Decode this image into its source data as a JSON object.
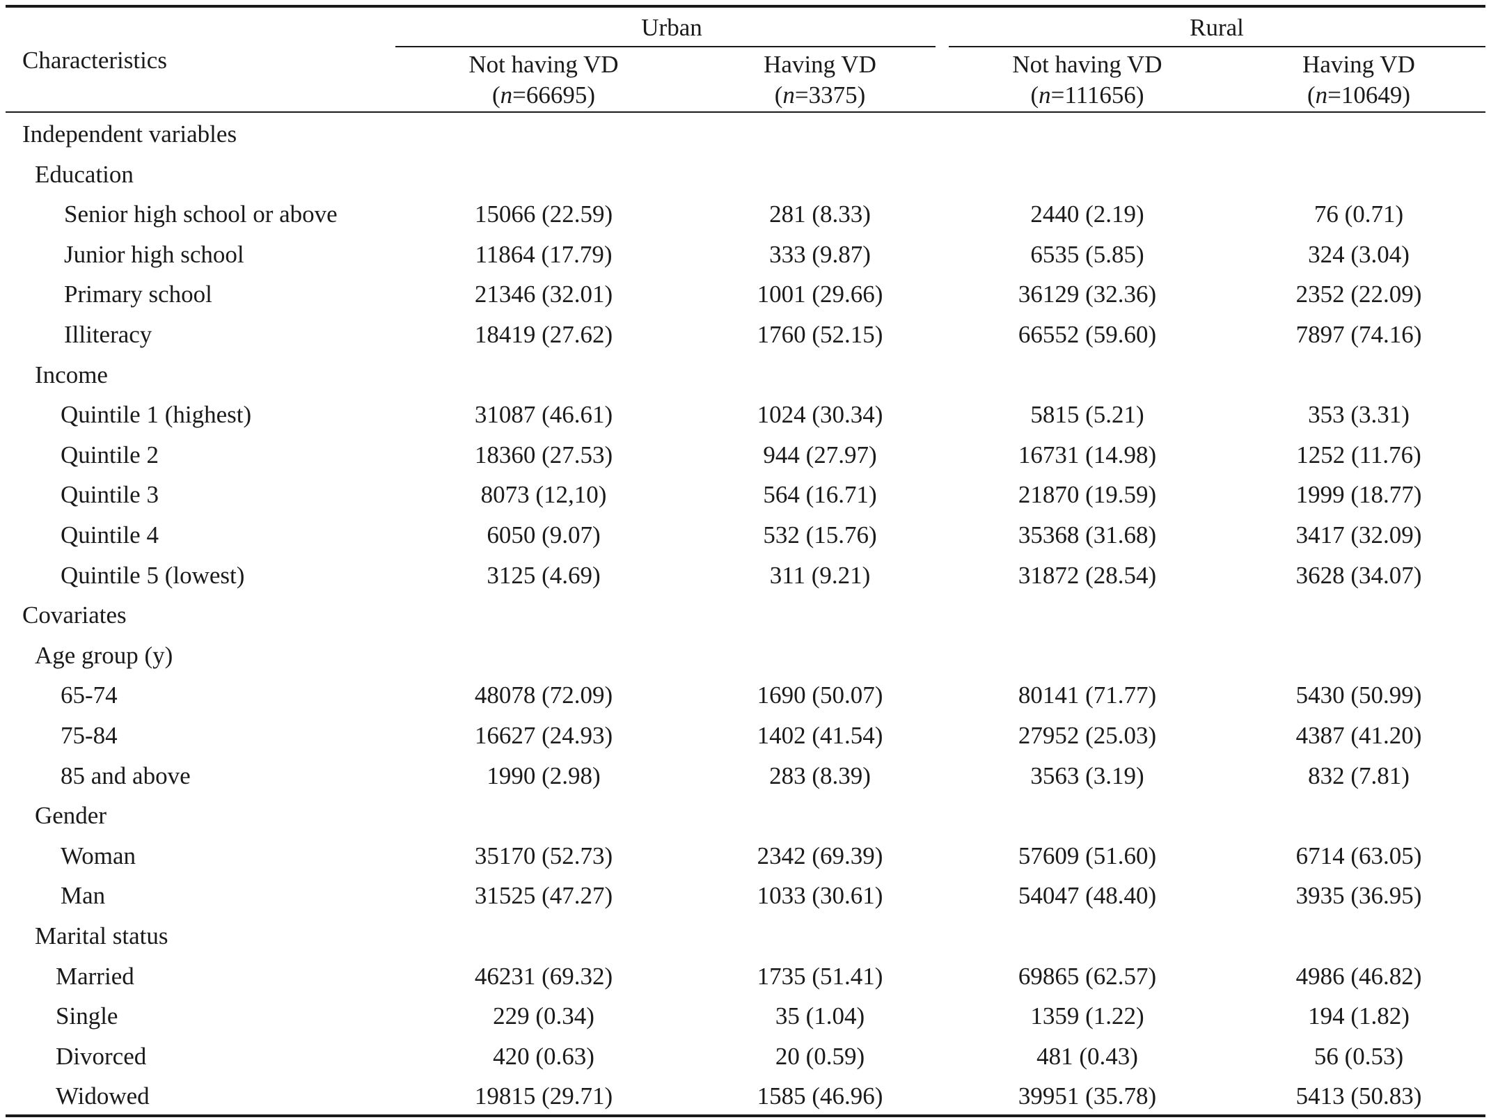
{
  "table": {
    "stub_header": "Characteristics",
    "groups": [
      "Urban",
      "Rural"
    ],
    "columns": [
      {
        "label": "Not having VD",
        "n_prefix": "(",
        "n_symbol": "n",
        "n_value": "=66695)"
      },
      {
        "label": "Having VD",
        "n_prefix": "(",
        "n_symbol": "n",
        "n_value": "=3375)"
      },
      {
        "label": "Not having VD",
        "n_prefix": "(",
        "n_symbol": "n",
        "n_value": "=111656)"
      },
      {
        "label": "Having VD",
        "n_prefix": "(",
        "n_symbol": "n",
        "n_value": "=10649)"
      }
    ],
    "rows": [
      {
        "label": "Independent variables",
        "level": 0,
        "values": []
      },
      {
        "label": "Education",
        "level": 1,
        "values": []
      },
      {
        "label": "Senior high school or above",
        "level": 2,
        "values": [
          "15066 (22.59)",
          "281 (8.33)",
          "2440 (2.19)",
          "76 (0.71)"
        ]
      },
      {
        "label": "Junior high school",
        "level": 2,
        "values": [
          "11864 (17.79)",
          "333 (9.87)",
          "6535 (5.85)",
          "324 (3.04)"
        ]
      },
      {
        "label": "Primary school",
        "level": 2,
        "values": [
          "21346 (32.01)",
          "1001 (29.66)",
          "36129 (32.36)",
          "2352 (22.09)"
        ]
      },
      {
        "label": "Illiteracy",
        "level": 2,
        "values": [
          "18419 (27.62)",
          "1760 (52.15)",
          "66552 (59.60)",
          "7897 (74.16)"
        ]
      },
      {
        "label": "Income",
        "level": 1,
        "values": []
      },
      {
        "label": "Quintile 1 (highest)",
        "level": 3,
        "values": [
          "31087 (46.61)",
          "1024 (30.34)",
          "5815 (5.21)",
          "353 (3.31)"
        ]
      },
      {
        "label": "Quintile 2",
        "level": 3,
        "values": [
          "18360 (27.53)",
          "944 (27.97)",
          "16731 (14.98)",
          "1252 (11.76)"
        ]
      },
      {
        "label": "Quintile 3",
        "level": 3,
        "values": [
          "8073 (12,10)",
          "564 (16.71)",
          "21870 (19.59)",
          "1999 (18.77)"
        ]
      },
      {
        "label": "Quintile 4",
        "level": 3,
        "values": [
          "6050 (9.07)",
          "532 (15.76)",
          "35368 (31.68)",
          "3417 (32.09)"
        ]
      },
      {
        "label": "Quintile 5 (lowest)",
        "level": 3,
        "values": [
          "3125 (4.69)",
          "311 (9.21)",
          "31872 (28.54)",
          "3628 (34.07)"
        ]
      },
      {
        "label": "Covariates",
        "level": 0,
        "values": []
      },
      {
        "label": "Age group (y)",
        "level": 1,
        "values": []
      },
      {
        "label": "65-74",
        "level": 3,
        "values": [
          "48078 (72.09)",
          "1690 (50.07)",
          "80141 (71.77)",
          "5430 (50.99)"
        ]
      },
      {
        "label": "75-84",
        "level": 3,
        "values": [
          "16627 (24.93)",
          "1402 (41.54)",
          "27952 (25.03)",
          "4387 (41.20)"
        ]
      },
      {
        "label": "85 and above",
        "level": 3,
        "values": [
          "1990 (2.98)",
          "283 (8.39)",
          "3563 (3.19)",
          "832 (7.81)"
        ]
      },
      {
        "label": "Gender",
        "level": 1,
        "values": []
      },
      {
        "label": "Woman",
        "level": 3,
        "values": [
          "35170 (52.73)",
          "2342 (69.39)",
          "57609 (51.60)",
          "6714 (63.05)"
        ]
      },
      {
        "label": "Man",
        "level": 3,
        "values": [
          "31525 (47.27)",
          "1033 (30.61)",
          "54047 (48.40)",
          "3935 (36.95)"
        ]
      },
      {
        "label": "Marital status",
        "level": 1,
        "values": []
      },
      {
        "label": "Married",
        "level": 4,
        "values": [
          "46231 (69.32)",
          "1735 (51.41)",
          "69865 (62.57)",
          "4986 (46.82)"
        ]
      },
      {
        "label": "Single",
        "level": 4,
        "values": [
          "229 (0.34)",
          "35 (1.04)",
          "1359 (1.22)",
          "194 (1.82)"
        ]
      },
      {
        "label": "Divorced",
        "level": 4,
        "values": [
          "420 (0.63)",
          "20 (0.59)",
          "481 (0.43)",
          "56 (0.53)"
        ]
      },
      {
        "label": "Widowed",
        "level": 4,
        "values": [
          "19815 (29.71)",
          "1585 (46.96)",
          "39951 (35.78)",
          "5413 (50.83)"
        ]
      }
    ]
  }
}
